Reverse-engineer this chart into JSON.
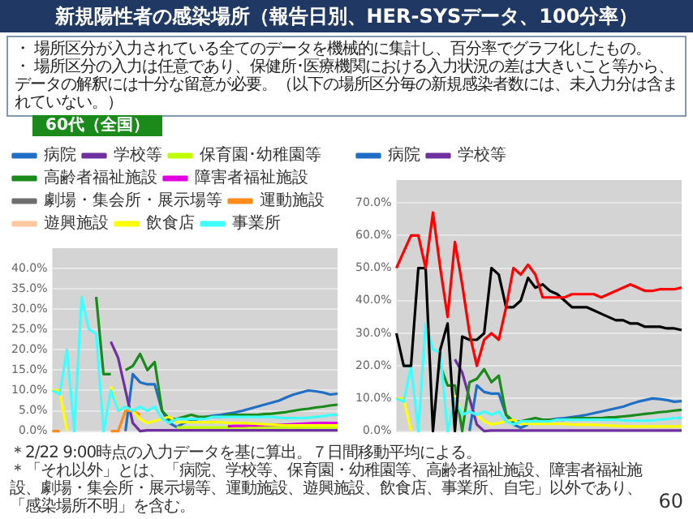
{
  "chart_data": [
    {
      "type": "line",
      "title": "新規陽性者の感染場所（報告日別、HER-SYSデータ、100分率）",
      "subtitle": "60代（全国）",
      "annotations": [
        "・ 場所区分が入力されている全てのデータを機械的に集計し、百分率でグラフ化したもの。",
        "・ 場所区分の入力は任意であり、保健所･医療機関における入力状況の差は大きいこと等から、データの解釈には十分な留意が必要。（以下の場所区分毎の新規感染者数には、未入力分は含まれていない。）",
        "＊2/22 9:00時点の入力データを基に算出。７日間移動平均による。",
        "＊「それ以外」とは、「病院、学校等、保育園・幼稚園等、高齢者福祉施設、障害者福祉施設、劇場・集会所・展示場等、運動施設、遊興施設、飲食店、事業所、自宅」以外であり、「感染場所不明」を含む。",
        "60"
      ],
      "categories": [
        null,
        null,
        null,
        null,
        null,
        null,
        null,
        null,
        null,
        null,
        null,
        null,
        null,
        null,
        null,
        null,
        null,
        null,
        null,
        null,
        null,
        null,
        null,
        null,
        null,
        null,
        null,
        null,
        null,
        null,
        null,
        null,
        null,
        null,
        null,
        null,
        null,
        null,
        null,
        null
      ],
      "ylim": [
        0,
        45
      ],
      "yticks": [
        {
          "value": 0,
          "label": "0.0%"
        },
        {
          "value": 5,
          "label": "5.0%"
        },
        {
          "value": 10,
          "label": "10.0%"
        },
        {
          "value": 15,
          "label": "15.0%"
        },
        {
          "value": 20,
          "label": "20.0%"
        },
        {
          "value": 25,
          "label": "25.0%"
        },
        {
          "value": 30,
          "label": "30.0%"
        },
        {
          "value": 35,
          "label": "35.0%"
        },
        {
          "value": 40,
          "label": "40.0%"
        }
      ],
      "grid": "y",
      "legend": "top",
      "tick_labels": "y",
      "marker": "none",
      "series": [
        {
          "name": "病院",
          "color": "#1f6fc5",
          "values": [
            null,
            null,
            null,
            null,
            null,
            null,
            null,
            null,
            null,
            null,
            0,
            14,
            12,
            11.5,
            11.5,
            5,
            2,
            1,
            2,
            2.5,
            3,
            3.5,
            3.8,
            4,
            4.3,
            4.6,
            5,
            5.5,
            6,
            6.5,
            7,
            7.5,
            8.3,
            9,
            9.5,
            10,
            9.8,
            9.5,
            9,
            9.2
          ]
        },
        {
          "name": "学校等",
          "color": "#7030a0",
          "values": [
            null,
            null,
            null,
            null,
            null,
            null,
            null,
            null,
            22,
            18,
            10,
            2,
            0,
            0.2,
            0.2,
            0.2,
            0.2,
            0.2,
            0.2,
            0.2,
            0.2,
            0.2,
            0.2,
            0.2,
            0.2,
            0.2,
            0.2,
            0.2,
            0.2,
            0.2,
            0.2,
            0.2,
            0.2,
            0.2,
            0.2,
            0.2,
            0.2,
            0.2,
            0.2,
            0.2
          ]
        },
        {
          "name": "保育園･幼稚園等",
          "color": "#c0ff00",
          "values": [
            null,
            null,
            null,
            null,
            null,
            null,
            null,
            null,
            null,
            null,
            null,
            null,
            null,
            null,
            null,
            null,
            null,
            0.9,
            0.9,
            0.9,
            0.9,
            0.9,
            0.9,
            0.9,
            0.9,
            0.9,
            0.9,
            0.9,
            0.9,
            0.9,
            0.9,
            0.9,
            0.9,
            0.9,
            0.9,
            0.9,
            0.9,
            0.9,
            0.9,
            0.9
          ]
        },
        {
          "name": "高齢者福祉施設",
          "color": "#1a8a1a",
          "values": [
            null,
            null,
            null,
            null,
            null,
            null,
            33,
            14,
            14,
            null,
            15,
            16,
            19,
            15,
            17,
            5,
            3,
            3,
            3.5,
            4,
            3.5,
            3.5,
            3.5,
            3.5,
            4,
            4,
            4,
            4,
            4,
            4.2,
            4.3,
            4.5,
            4.7,
            5,
            5.3,
            5.5,
            5.8,
            6,
            6.3,
            6.5
          ]
        },
        {
          "name": "障害者福祉施設",
          "color": "#e000e0",
          "values": [
            null,
            null,
            null,
            null,
            null,
            null,
            null,
            null,
            null,
            null,
            null,
            null,
            null,
            null,
            null,
            null,
            null,
            null,
            null,
            null,
            null,
            null,
            null,
            null,
            1.2,
            1.3,
            1.3,
            1.4,
            1.4,
            1.5,
            1.5,
            1.6,
            1.6,
            1.7,
            1.8,
            1.9,
            2,
            2,
            2,
            2
          ]
        },
        {
          "name": "劇場・集会所・展示場等",
          "color": "#707070",
          "values": [
            null,
            null,
            null,
            null,
            null,
            null,
            null,
            null,
            null,
            null,
            null,
            null,
            null,
            null,
            null,
            null,
            null,
            null,
            null,
            null,
            null,
            null,
            null,
            null,
            null,
            null,
            null,
            null,
            null,
            null,
            null,
            null,
            null,
            null,
            null,
            null,
            null,
            null,
            null,
            null
          ]
        },
        {
          "name": "運動施設",
          "color": "#ff8c1a",
          "values": [
            0,
            0,
            null,
            null,
            null,
            null,
            null,
            null,
            0,
            0,
            5,
            5,
            4,
            null,
            null,
            null,
            null,
            null,
            null,
            null,
            null,
            null,
            null,
            null,
            null,
            null,
            null,
            null,
            null,
            null,
            null,
            null,
            null,
            null,
            null,
            null,
            null,
            null,
            null,
            null
          ]
        },
        {
          "name": "遊興施設",
          "color": "#ffc8a0",
          "values": [
            null,
            null,
            null,
            null,
            null,
            null,
            null,
            null,
            null,
            null,
            null,
            null,
            null,
            null,
            null,
            null,
            null,
            null,
            null,
            null,
            null,
            null,
            null,
            null,
            null,
            null,
            null,
            null,
            null,
            null,
            null,
            null,
            null,
            null,
            null,
            null,
            null,
            null,
            null,
            null
          ]
        },
        {
          "name": "飲食店",
          "color": "#ffff00",
          "values": [
            10,
            10,
            0,
            null,
            null,
            null,
            null,
            null,
            11,
            5,
            6,
            5,
            3,
            2,
            2.5,
            3,
            3.5,
            2.2,
            2.2,
            2.2,
            2.2,
            2.2,
            2.2,
            2.2,
            2,
            2,
            2,
            1.9,
            1.8,
            1.7,
            1.6,
            1.5,
            1.4,
            1.4,
            1.4,
            1.4,
            1.4,
            1.4,
            1.4,
            1.4
          ]
        },
        {
          "name": "事業所",
          "color": "#40ffff",
          "values": [
            10,
            9,
            20,
            0,
            33,
            25,
            24,
            0,
            10,
            5,
            6,
            5,
            6,
            5,
            6,
            3,
            2,
            3,
            3,
            3,
            3,
            3,
            3.5,
            3.5,
            3.5,
            3.5,
            3.5,
            3.5,
            3.5,
            3.5,
            3.5,
            3.3,
            3.2,
            3.2,
            3.2,
            3.3,
            3.5,
            3.7,
            4,
            4
          ]
        }
      ]
    },
    {
      "type": "line",
      "categories": [
        null,
        null,
        null,
        null,
        null,
        null,
        null,
        null,
        null,
        null,
        null,
        null,
        null,
        null,
        null,
        null,
        null,
        null,
        null,
        null,
        null,
        null,
        null,
        null,
        null,
        null,
        null,
        null,
        null,
        null,
        null,
        null,
        null,
        null,
        null,
        null,
        null,
        null,
        null,
        null
      ],
      "ylim": [
        0,
        77
      ],
      "yticks": [
        {
          "value": 0,
          "label": "0.0%"
        },
        {
          "value": 10,
          "label": "10.0%"
        },
        {
          "value": 20,
          "label": "20.0%"
        },
        {
          "value": 30,
          "label": "30.0%"
        },
        {
          "value": 40,
          "label": "40.0%"
        },
        {
          "value": 50,
          "label": "50.0%"
        },
        {
          "value": 60,
          "label": "60.0%"
        },
        {
          "value": 70,
          "label": "70.0%"
        }
      ],
      "grid": "y",
      "legend": "top",
      "tick_labels": "y",
      "marker": "none",
      "series": [
        {
          "name": "病院",
          "color": "#1f6fc5",
          "values": [
            null,
            null,
            null,
            null,
            null,
            null,
            null,
            null,
            null,
            null,
            0,
            14,
            12,
            11.5,
            11.5,
            5,
            2,
            1,
            2,
            null,
            null,
            3.5,
            3.8,
            4,
            4.3,
            4.6,
            5,
            5.5,
            6,
            6.5,
            7,
            7.5,
            8.3,
            9,
            9.5,
            10,
            9.8,
            9.5,
            9,
            9.2
          ]
        },
        {
          "name": "学校等",
          "color": "#7030a0",
          "values": [
            null,
            null,
            null,
            null,
            null,
            null,
            null,
            null,
            22,
            18,
            10,
            2,
            0,
            0.2,
            0.2,
            0.2,
            0.2,
            0.2,
            0.2,
            0.2,
            0.2,
            0.2,
            0.2,
            0.2,
            0.2,
            0.2,
            0.2,
            0.2,
            0.2,
            0.2,
            0.2,
            0.2,
            0.2,
            0.2,
            0.2,
            0.2,
            0.2,
            0.2,
            0.2,
            0.2
          ]
        },
        {
          "color": "#1a8a1a",
          "values": [
            null,
            null,
            null,
            null,
            null,
            null,
            20,
            14,
            14,
            0,
            15,
            16,
            19,
            15,
            17,
            5,
            3,
            3,
            3.5,
            4,
            3.5,
            3.5,
            3.5,
            3.5,
            4,
            4,
            4,
            4,
            4,
            4.2,
            4.3,
            4.5,
            4.7,
            5,
            5.3,
            5.5,
            5.8,
            6,
            6.3,
            6.5
          ]
        },
        {
          "color": "#ffff00",
          "values": [
            10,
            10,
            0,
            null,
            null,
            null,
            null,
            null,
            11,
            5,
            null,
            5,
            3,
            2,
            2.5,
            3,
            3.5,
            2.2,
            2.2,
            2.2,
            2.2,
            2.2,
            2.2,
            2.2,
            2,
            2,
            2,
            1.9,
            1.8,
            1.7,
            1.6,
            1.5,
            1.4,
            1.4,
            1.4,
            1.4,
            1.4,
            1.4,
            1.4,
            1.4
          ]
        },
        {
          "color": "#40ffff",
          "values": [
            10,
            9,
            20,
            0,
            33,
            25,
            24,
            0,
            10,
            5,
            6,
            5,
            6,
            5,
            6,
            3,
            2,
            3,
            3,
            3,
            3,
            3,
            3.5,
            3.5,
            3.5,
            3.5,
            3.5,
            3.5,
            3.5,
            3.5,
            3.5,
            3.3,
            3.2,
            3.2,
            3.2,
            3.3,
            3.5,
            3.7,
            4,
            4
          ]
        },
        {
          "color": "#000000",
          "values": [
            30,
            20,
            20,
            50,
            50,
            0,
            25,
            33,
            0,
            29,
            28,
            28,
            30,
            50,
            48,
            38,
            38,
            40,
            47,
            44,
            45,
            43,
            42,
            40,
            38,
            38,
            38,
            37,
            36,
            35,
            34,
            34,
            33,
            33,
            32,
            32,
            32,
            31.5,
            31.5,
            31
          ]
        },
        {
          "color": "#ff0000",
          "values": [
            50,
            55,
            60,
            60,
            50,
            67,
            50,
            35,
            58,
            45,
            30,
            20,
            28,
            30,
            28,
            38,
            50,
            48,
            51,
            48,
            41,
            41,
            41,
            41,
            42,
            42,
            42,
            42,
            41,
            42,
            43,
            44,
            45,
            44,
            43,
            43,
            43.5,
            43.5,
            43.5,
            44
          ]
        }
      ]
    }
  ]
}
